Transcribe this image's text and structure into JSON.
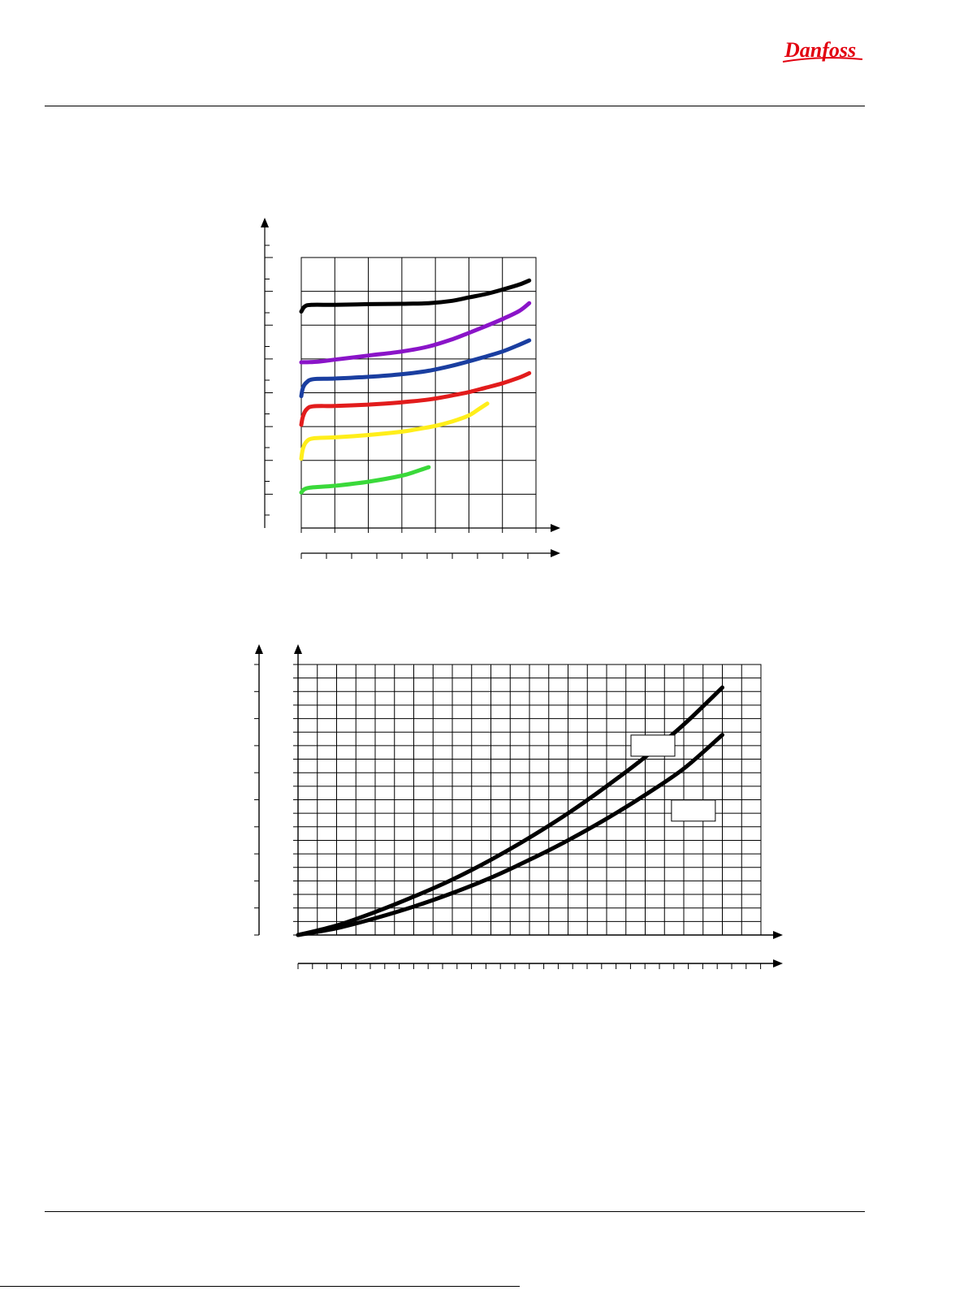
{
  "brand": {
    "logo_text": "Danfoss",
    "logo_color": "#e2000f"
  },
  "chart_data": [
    {
      "type": "line",
      "title": "",
      "xlabel": "",
      "ylabel": "",
      "grid": true,
      "xlim": [
        0,
        7
      ],
      "ylim": [
        0,
        8
      ],
      "series": [
        {
          "color": "#000000",
          "x": [
            0,
            0.1,
            0.3,
            1,
            2,
            3,
            3.8,
            4.5,
            5,
            5.5,
            6,
            6.5,
            6.8
          ],
          "y": [
            6.4,
            6.55,
            6.6,
            6.6,
            6.62,
            6.63,
            6.65,
            6.72,
            6.82,
            6.92,
            7.05,
            7.2,
            7.32
          ]
        },
        {
          "color": "#8a14c8",
          "x": [
            0,
            0.5,
            1,
            2,
            3,
            3.8,
            4.5,
            5,
            5.5,
            6,
            6.5,
            6.8
          ],
          "y": [
            4.9,
            4.92,
            4.98,
            5.1,
            5.22,
            5.37,
            5.58,
            5.77,
            5.97,
            6.18,
            6.42,
            6.65
          ]
        },
        {
          "color": "#1a3ea0",
          "x": [
            0,
            0.05,
            0.15,
            0.35,
            1,
            2,
            3,
            3.8,
            4.5,
            5,
            5.5,
            6,
            6.5,
            6.8
          ],
          "y": [
            3.9,
            4.15,
            4.3,
            4.4,
            4.42,
            4.47,
            4.55,
            4.65,
            4.8,
            4.93,
            5.07,
            5.22,
            5.42,
            5.55
          ]
        },
        {
          "color": "#e21c1c",
          "x": [
            0,
            0.05,
            0.15,
            0.35,
            1,
            2,
            3,
            3.8,
            4.5,
            5,
            5.5,
            6,
            6.5,
            6.8
          ],
          "y": [
            3.05,
            3.3,
            3.5,
            3.6,
            3.61,
            3.65,
            3.72,
            3.8,
            3.92,
            4.02,
            4.15,
            4.28,
            4.45,
            4.58
          ]
        },
        {
          "color": "#ffee1a",
          "x": [
            0,
            0.05,
            0.15,
            0.35,
            1,
            2,
            3,
            3.5,
            4,
            4.5,
            5,
            5.3,
            5.55
          ],
          "y": [
            2.05,
            2.35,
            2.55,
            2.65,
            2.68,
            2.75,
            2.85,
            2.93,
            3.02,
            3.15,
            3.33,
            3.52,
            3.68
          ]
        },
        {
          "color": "#3ad93a",
          "x": [
            0,
            0.1,
            0.3,
            1,
            2,
            3,
            3.5,
            3.8
          ],
          "y": [
            1.05,
            1.15,
            1.2,
            1.25,
            1.37,
            1.55,
            1.7,
            1.8
          ]
        }
      ]
    },
    {
      "type": "line",
      "title": "",
      "xlabel": "",
      "ylabel": "",
      "grid": true,
      "xlim": [
        0,
        24
      ],
      "ylim": [
        0,
        10
      ],
      "series": [
        {
          "color": "#000000",
          "x": [
            0,
            2,
            4,
            6,
            8,
            10,
            12,
            14,
            16,
            18,
            20,
            22
          ],
          "y": [
            0,
            0.35,
            0.85,
            1.42,
            2.05,
            2.78,
            3.6,
            4.5,
            5.5,
            6.58,
            7.78,
            9.15
          ]
        },
        {
          "color": "#000000",
          "x": [
            0,
            2,
            4,
            6,
            8,
            10,
            12,
            14,
            16,
            18,
            20,
            22
          ],
          "y": [
            0,
            0.25,
            0.62,
            1.05,
            1.55,
            2.12,
            2.78,
            3.5,
            4.3,
            5.18,
            6.15,
            7.4
          ]
        }
      ],
      "annotations": [
        {
          "text": "",
          "at_x": 18.4,
          "at_y": 7.0
        },
        {
          "text": "",
          "at_x": 20.5,
          "at_y": 4.6
        }
      ]
    }
  ]
}
